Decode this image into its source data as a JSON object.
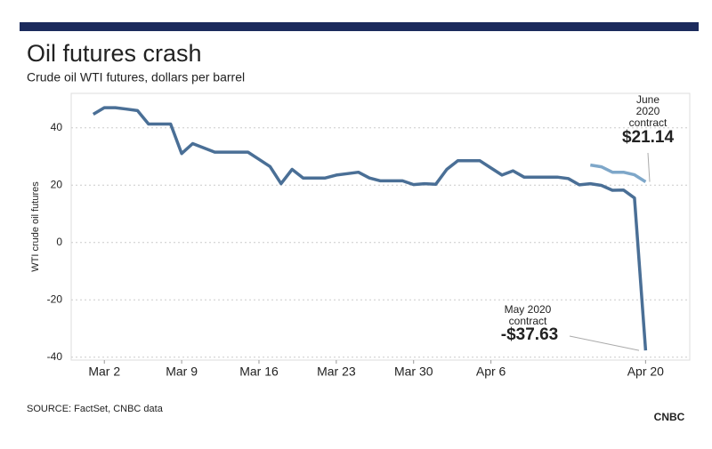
{
  "chart_data": {
    "type": "line",
    "title": "Oil futures crash",
    "subtitle": "Crude oil WTI futures, dollars per barrel",
    "y_label": "WTI crude oil futures",
    "source": "SOURCE: FactSet, CNBC data",
    "logo": "CNBC",
    "xlim": [
      "Feb 28",
      "Apr 24"
    ],
    "xticks": [
      "Mar 2",
      "Mar 9",
      "Mar 16",
      "Mar 23",
      "Mar 30",
      "Apr 6",
      "Apr 20"
    ],
    "ylim": [
      -41,
      52
    ],
    "yticks": [
      -40,
      -20,
      0,
      20,
      40
    ],
    "grid": true,
    "series": [
      {
        "name": "May 2020 contract",
        "color": "#4a6f96",
        "x": [
          "Mar 1",
          "Mar 2",
          "Mar 3",
          "Mar 4",
          "Mar 5",
          "Mar 6",
          "Mar 8",
          "Mar 9",
          "Mar 10",
          "Mar 12",
          "Mar 13",
          "Mar 15",
          "Mar 16",
          "Mar 17",
          "Mar 18",
          "Mar 19",
          "Mar 20",
          "Mar 22",
          "Mar 23",
          "Mar 24",
          "Mar 25",
          "Mar 26",
          "Mar 27",
          "Mar 29",
          "Mar 30",
          "Mar 31",
          "Apr 1",
          "Apr 2",
          "Apr 3",
          "Apr 5",
          "Apr 6",
          "Apr 7",
          "Apr 8",
          "Apr 9",
          "Apr 12",
          "Apr 13",
          "Apr 14",
          "Apr 15",
          "Apr 16",
          "Apr 17",
          "Apr 18",
          "Apr 19",
          "Apr 20"
        ],
        "values": [
          44.7,
          47,
          47,
          46.5,
          46,
          41.3,
          41.3,
          31,
          34.5,
          31.5,
          31.5,
          31.5,
          29,
          26.5,
          20.5,
          25.5,
          22.5,
          22.5,
          23.5,
          24,
          24.5,
          22.5,
          21.5,
          21.5,
          20.2,
          20.5,
          20.3,
          25.5,
          28.5,
          28.5,
          26,
          23.5,
          25,
          22.8,
          22.8,
          22.3,
          20.1,
          20.5,
          19.9,
          18.2,
          18.3,
          15.5,
          -37.63
        ]
      },
      {
        "name": "June 2020 contract",
        "color": "#7ea7c9",
        "x": [
          "Apr 15",
          "Apr 16",
          "Apr 17",
          "Apr 18",
          "Apr 19",
          "Apr 20"
        ],
        "values": [
          27,
          26.4,
          24.5,
          24.5,
          23.6,
          21.14
        ]
      }
    ],
    "annotations": [
      {
        "text": "June 2020 contract",
        "label": "$21.14",
        "value": 21.14
      },
      {
        "text": "May 2020 contract",
        "label": "-$37.63",
        "value": -37.63
      }
    ]
  }
}
